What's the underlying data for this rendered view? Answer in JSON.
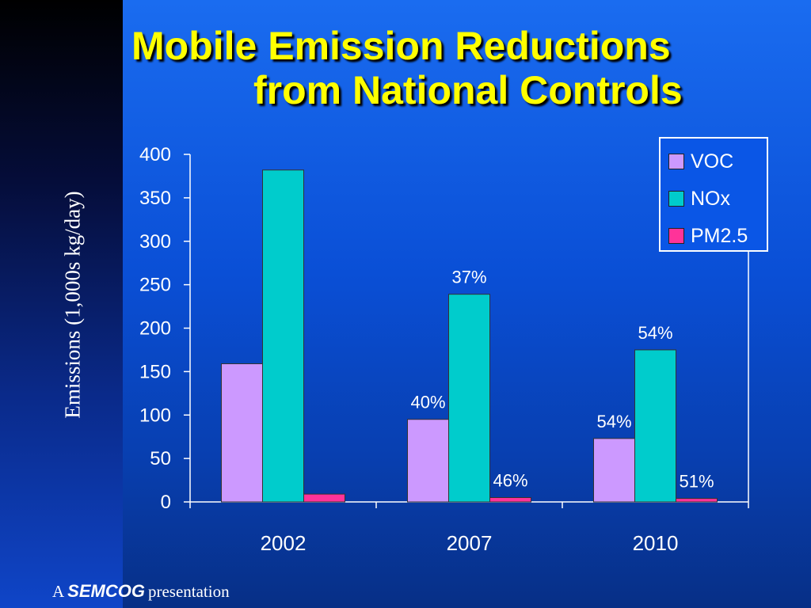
{
  "title": {
    "line1": "Mobile Emission Reductions",
    "line2": "from National Controls"
  },
  "footer": {
    "prefix": "A",
    "brand": "SEMCOG",
    "suffix": "presentation"
  },
  "colors": {
    "voc": "#cc99ff",
    "nox": "#00cccc",
    "pm25": "#ff3399",
    "title": "#ffff00",
    "background": "#0a4fd6"
  },
  "chart_data": {
    "type": "bar",
    "categories": [
      "2002",
      "2007",
      "2010"
    ],
    "series": [
      {
        "name": "VOC",
        "color": "#cc99ff",
        "values": [
          159,
          95,
          73
        ],
        "labels": [
          "",
          "40%",
          "54%"
        ]
      },
      {
        "name": "NOx",
        "color": "#00cccc",
        "values": [
          382,
          239,
          175
        ],
        "labels": [
          "",
          "37%",
          "54%"
        ]
      },
      {
        "name": "PM2.5",
        "color": "#ff3399",
        "values": [
          9,
          5,
          4
        ],
        "labels": [
          "",
          "46%",
          "51%"
        ]
      }
    ],
    "ylabel": "Emissions (1,000s kg/day)",
    "xlabel": "",
    "ylim": [
      0,
      400
    ],
    "yticks": [
      0,
      50,
      100,
      150,
      200,
      250,
      300,
      350,
      400
    ],
    "legend_position": "top-right",
    "grid": false
  }
}
